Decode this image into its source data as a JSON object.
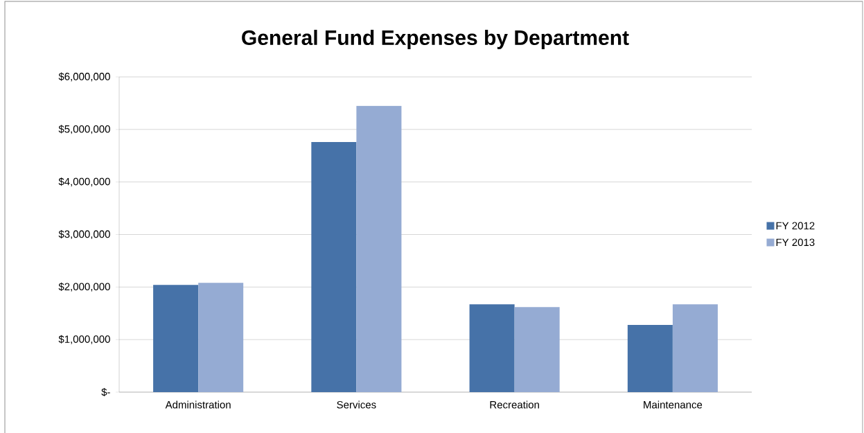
{
  "chart_data": {
    "type": "bar",
    "title": "General Fund Expenses by Department",
    "categories": [
      "Administration",
      "Services",
      "Recreation",
      "Maintenance"
    ],
    "series": [
      {
        "name": "FY 2012",
        "color": "#4672a8",
        "values": [
          2040000,
          4760000,
          1670000,
          1280000
        ]
      },
      {
        "name": "FY 2013",
        "color": "#95abd3",
        "values": [
          2080000,
          5450000,
          1620000,
          1670000
        ]
      }
    ],
    "ylim": [
      0,
      6000000
    ],
    "yticks": [
      {
        "value": 0,
        "label": "$-"
      },
      {
        "value": 1000000,
        "label": "$1,000,000"
      },
      {
        "value": 2000000,
        "label": "$2,000,000"
      },
      {
        "value": 3000000,
        "label": "$3,000,000"
      },
      {
        "value": 4000000,
        "label": "$4,000,000"
      },
      {
        "value": 5000000,
        "label": "$5,000,000"
      },
      {
        "value": 6000000,
        "label": "$6,000,000"
      }
    ],
    "grid": "y",
    "legend": "right"
  }
}
